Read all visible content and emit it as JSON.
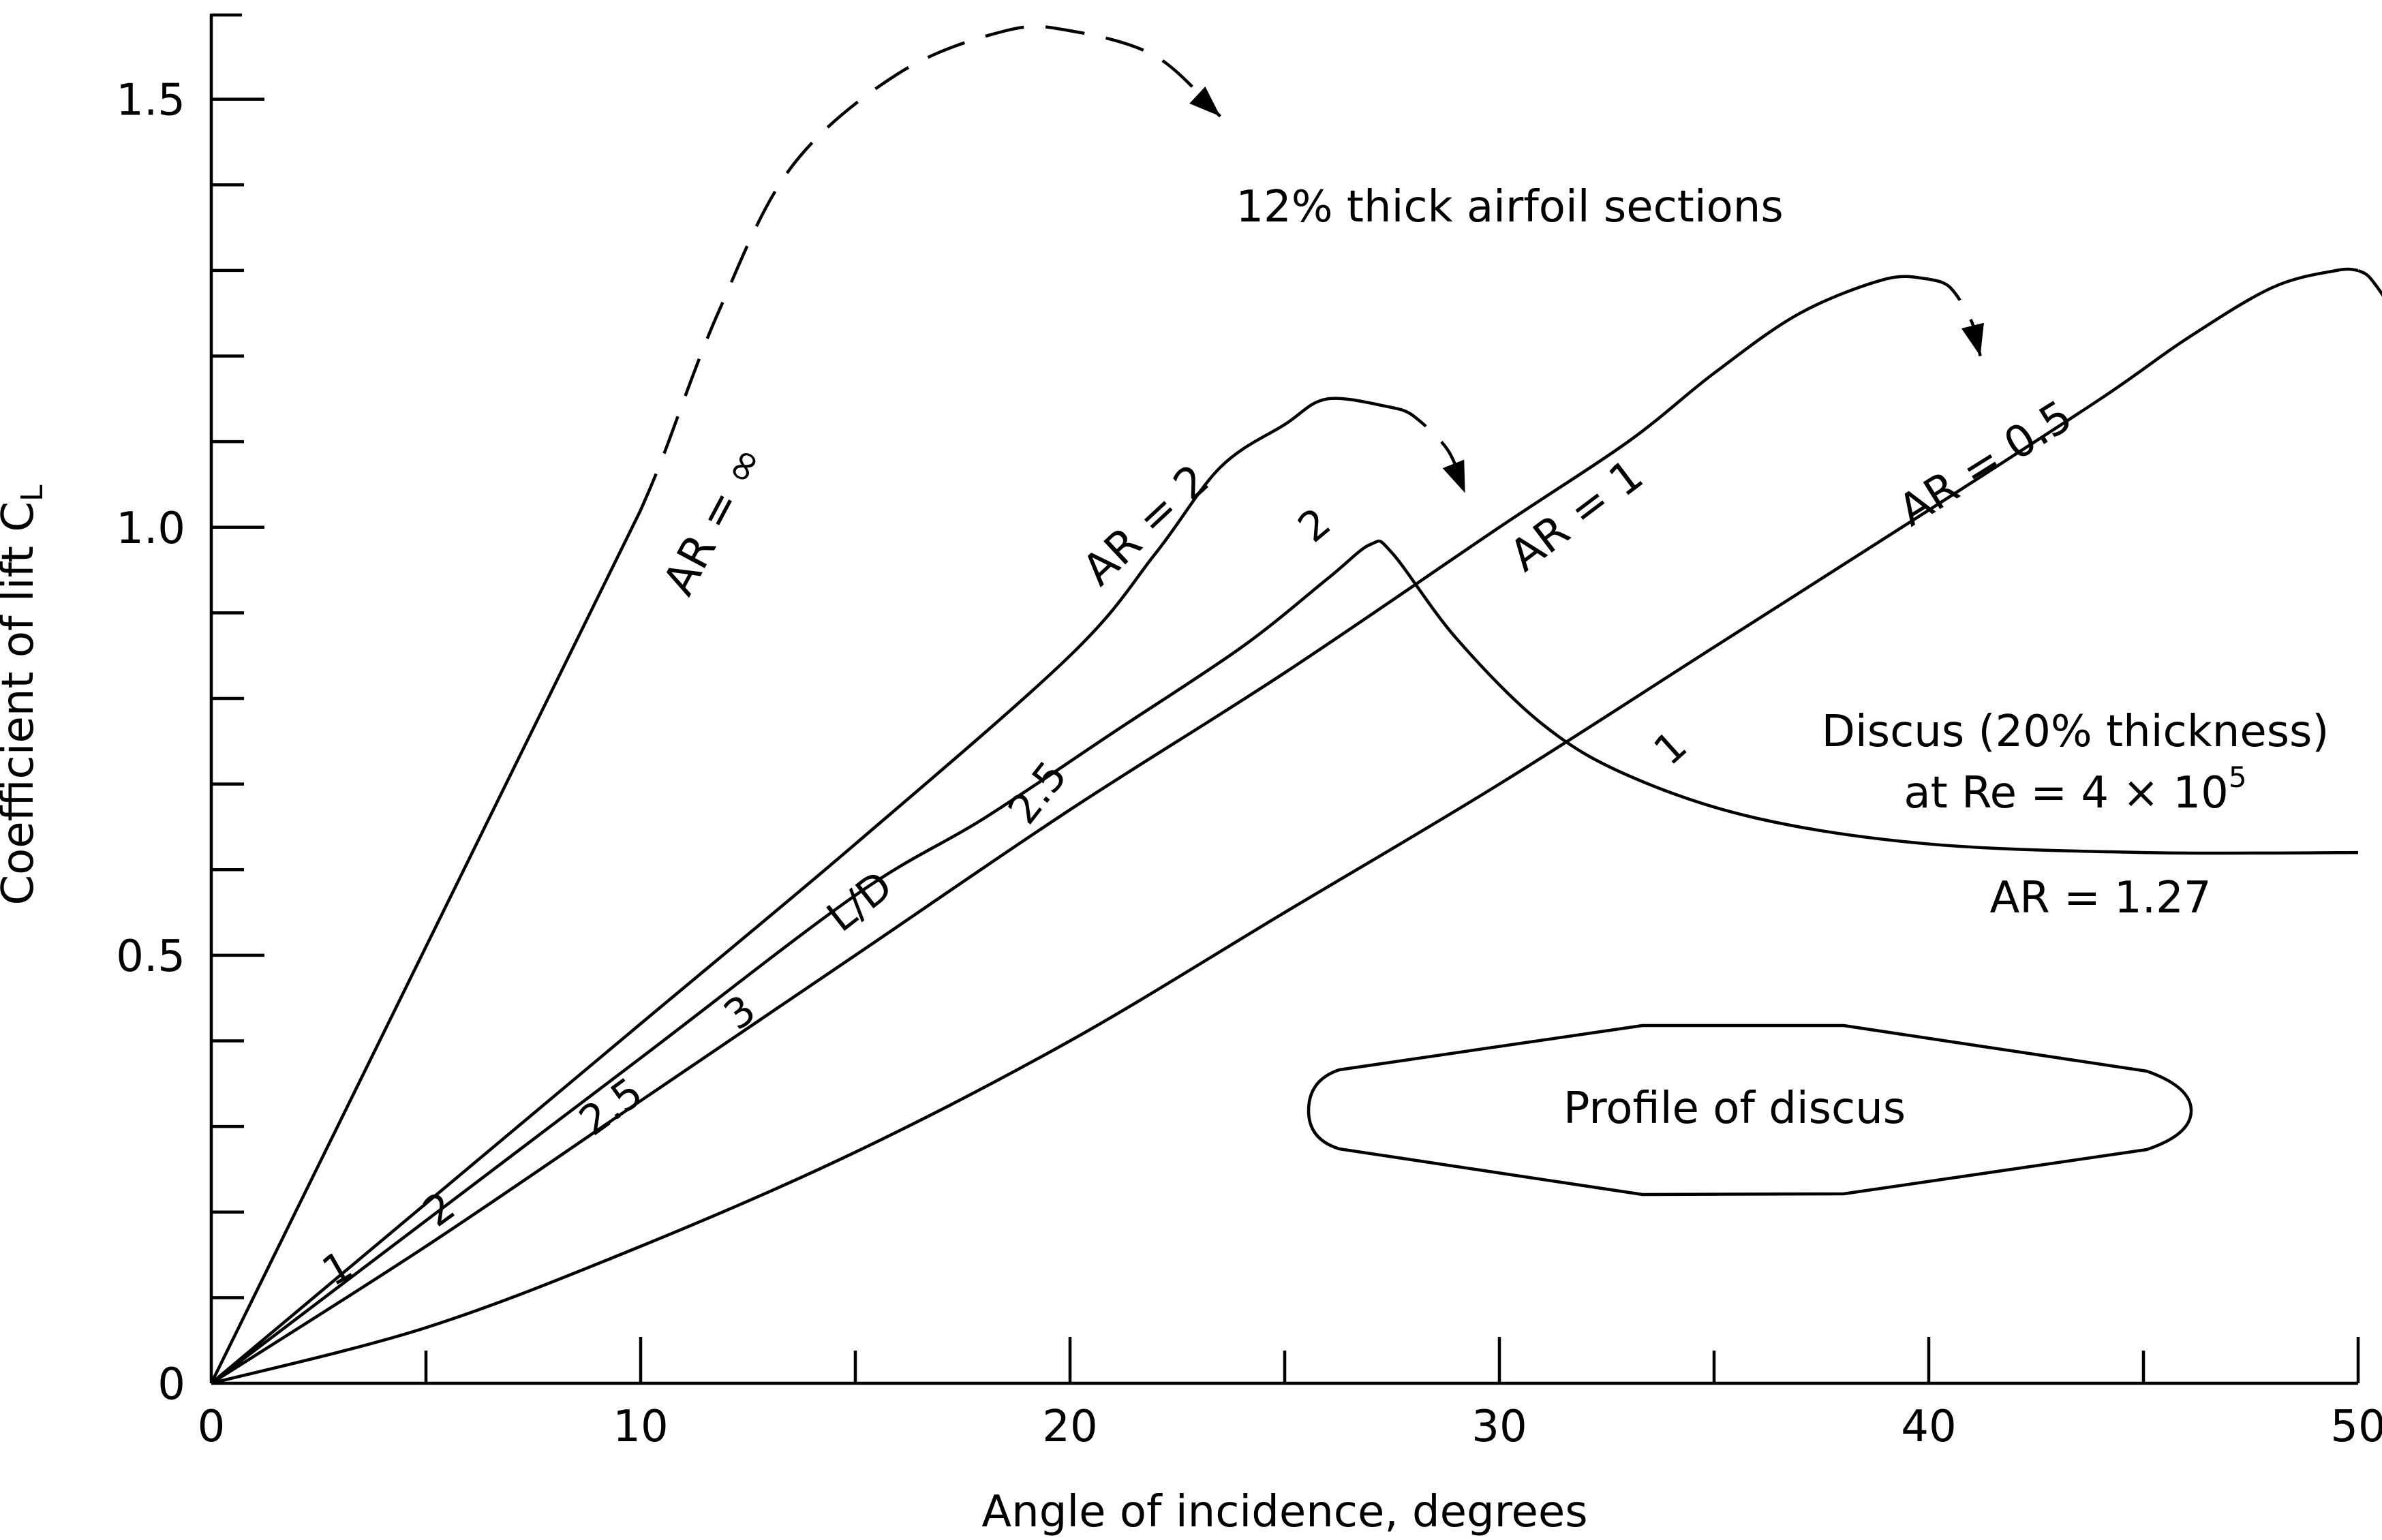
{
  "chart_data": {
    "type": "line",
    "title": "",
    "xlabel": "Angle of incidence, degrees",
    "ylabel": "Coefficient of lift C",
    "ylabel_subscript": "L",
    "xlim": [
      0,
      50
    ],
    "ylim": [
      0,
      1.6
    ],
    "x_ticks": [
      {
        "value": 0,
        "label": "0"
      },
      {
        "value": 10,
        "label": "10"
      },
      {
        "value": 20,
        "label": "20"
      },
      {
        "value": 30,
        "label": "30"
      },
      {
        "value": 40,
        "label": "40"
      },
      {
        "value": 50,
        "label": "50"
      }
    ],
    "x_minor_ticks": [
      5,
      15,
      25,
      35,
      45
    ],
    "y_ticks": [
      {
        "value": 0,
        "label": "0"
      },
      {
        "value": 0.5,
        "label": "0.5"
      },
      {
        "value": 1.0,
        "label": "1.0"
      },
      {
        "value": 1.5,
        "label": "1.5"
      }
    ],
    "y_minor_ticks": [
      0.1,
      0.2,
      0.3,
      0.4,
      0.6,
      0.7,
      0.8,
      0.9,
      1.1,
      1.2,
      1.3,
      1.4
    ],
    "series": [
      {
        "name": "AR = ∞",
        "style": "solid",
        "points": [
          [
            0,
            0
          ],
          [
            10,
            1.02
          ]
        ],
        "dashed_points": [
          [
            10.5,
            1.08
          ],
          [
            11.8,
            1.25
          ],
          [
            13.5,
            1.42
          ],
          [
            16,
            1.53
          ],
          [
            18.5,
            1.58
          ],
          [
            20,
            1.58
          ],
          [
            22,
            1.55
          ],
          [
            23.5,
            1.48
          ]
        ],
        "label_at": [
          12,
          1.0
        ]
      },
      {
        "name": "AR = 2",
        "style": "solid",
        "points": [
          [
            0,
            0
          ],
          [
            5,
            0.21
          ],
          [
            10,
            0.42
          ],
          [
            15,
            0.63
          ],
          [
            20,
            0.85
          ],
          [
            22,
            0.97
          ],
          [
            23.5,
            1.07
          ],
          [
            25,
            1.12
          ],
          [
            26,
            1.15
          ],
          [
            27.5,
            1.14
          ]
        ],
        "dashed_points": [
          [
            28,
            1.13
          ],
          [
            28.8,
            1.09
          ],
          [
            29.2,
            1.04
          ]
        ],
        "label_at": [
          22,
          0.99
        ]
      },
      {
        "name": "AR = 1",
        "style": "solid",
        "points": [
          [
            0,
            0
          ],
          [
            5,
            0.16
          ],
          [
            10,
            0.33
          ],
          [
            15,
            0.5
          ],
          [
            20,
            0.67
          ],
          [
            25,
            0.83
          ],
          [
            30,
            1.0
          ],
          [
            33,
            1.1
          ],
          [
            35,
            1.18
          ],
          [
            37,
            1.25
          ],
          [
            39,
            1.29
          ],
          [
            40,
            1.29
          ]
        ],
        "dashed_points": [
          [
            40.5,
            1.28
          ],
          [
            41,
            1.24
          ],
          [
            41.2,
            1.2
          ]
        ],
        "label_at": [
          32,
          1.0
        ]
      },
      {
        "name": "AR = 0.5",
        "style": "solid",
        "points": [
          [
            0,
            0
          ],
          [
            5,
            0.065
          ],
          [
            10,
            0.16
          ],
          [
            15,
            0.27
          ],
          [
            20,
            0.4
          ],
          [
            25,
            0.55
          ],
          [
            30,
            0.7
          ],
          [
            35,
            0.86
          ],
          [
            40,
            1.02
          ],
          [
            44,
            1.15
          ],
          [
            46,
            1.22
          ],
          [
            48,
            1.28
          ],
          [
            49.5,
            1.3
          ],
          [
            50,
            1.3
          ]
        ],
        "dashed_points": [
          [
            50.3,
            1.29
          ],
          [
            50.8,
            1.25
          ],
          [
            51,
            1.2
          ]
        ],
        "label_at": [
          41.5,
          1.06
        ]
      },
      {
        "name": "AR = 1.27",
        "style": "solid",
        "points": [
          [
            0,
            0
          ],
          [
            5,
            0.19
          ],
          [
            10,
            0.38
          ],
          [
            15,
            0.57
          ],
          [
            18,
            0.66
          ],
          [
            21,
            0.76
          ],
          [
            24,
            0.86
          ],
          [
            26,
            0.94
          ],
          [
            27,
            0.98
          ],
          [
            27.5,
            0.97
          ],
          [
            29,
            0.87
          ],
          [
            31,
            0.77
          ],
          [
            33,
            0.71
          ],
          [
            36,
            0.66
          ],
          [
            40,
            0.63
          ],
          [
            45,
            0.62
          ],
          [
            50,
            0.62
          ]
        ],
        "label_at": [
          44,
          0.55
        ]
      }
    ],
    "ld_labels": [
      {
        "text": "1",
        "x": 3.1,
        "y": 0.12
      },
      {
        "text": "2",
        "x": 5.5,
        "y": 0.19
      },
      {
        "text": "2.5",
        "x": 9.5,
        "y": 0.31
      },
      {
        "text": "3",
        "x": 12.5,
        "y": 0.42
      },
      {
        "text": "L/D",
        "x": 15.3,
        "y": 0.55
      },
      {
        "text": "2.5",
        "x": 19.5,
        "y": 0.68
      },
      {
        "text": "2",
        "x": 25.9,
        "y": 0.99
      },
      {
        "text": "1",
        "x": 34.2,
        "y": 0.73
      }
    ],
    "annotations": [
      {
        "text": "12% thick airfoil sections"
      },
      {
        "text": "Discus (20% thickness)"
      },
      {
        "text": "at Re = 4 × 10",
        "superscript": "5"
      },
      {
        "text": "Profile of discus"
      }
    ]
  }
}
